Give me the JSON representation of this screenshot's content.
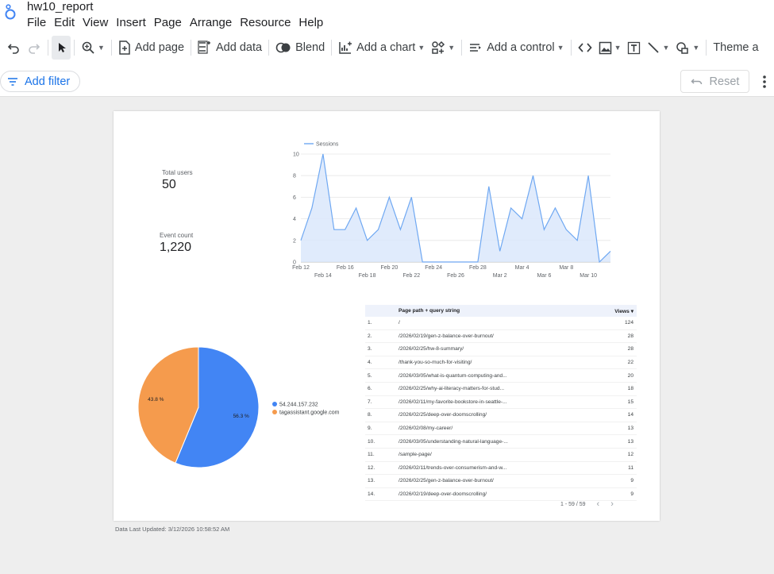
{
  "app": {
    "doc_title": "hw10_report"
  },
  "menu": [
    "File",
    "Edit",
    "View",
    "Insert",
    "Page",
    "Arrange",
    "Resource",
    "Help"
  ],
  "toolbar": {
    "add_page": "Add page",
    "add_data": "Add data",
    "blend": "Blend",
    "add_chart": "Add a chart",
    "add_control": "Add a control",
    "theme": "Theme a"
  },
  "filterbar": {
    "add_filter": "Add filter",
    "reset": "Reset"
  },
  "scorecards": [
    {
      "label": "Total users",
      "value": "50"
    },
    {
      "label": "Event count",
      "value": "1,220"
    }
  ],
  "chart_data": [
    {
      "type": "area",
      "series": [
        {
          "name": "Sessions",
          "values": [
            2,
            5,
            10,
            3,
            3,
            5,
            2,
            3,
            6,
            3,
            6,
            0,
            0,
            0,
            0,
            0,
            0,
            7,
            1,
            5,
            4,
            8,
            3,
            5,
            3,
            2,
            8,
            0,
            1
          ]
        }
      ],
      "x": [
        "Feb 12",
        "Feb 13",
        "Feb 14",
        "Feb 15",
        "Feb 16",
        "Feb 17",
        "Feb 18",
        "Feb 19",
        "Feb 20",
        "Feb 21",
        "Feb 22",
        "Feb 23",
        "Feb 24",
        "Feb 25",
        "Feb 26",
        "Feb 27",
        "Feb 28",
        "Mar 1",
        "Mar 2",
        "Mar 3",
        "Mar 4",
        "Mar 5",
        "Mar 6",
        "Mar 7",
        "Mar 8",
        "Mar 9",
        "Mar 10",
        "Mar 11",
        "Mar 12"
      ],
      "x_tick_labels_row1": [
        "Feb 12",
        "Feb 16",
        "Feb 20",
        "Feb 24",
        "Feb 28",
        "Mar 4",
        "Mar 8"
      ],
      "x_tick_labels_row2": [
        "Feb 14",
        "Feb 18",
        "Feb 22",
        "Feb 26",
        "Mar 2",
        "Mar 6",
        "Mar 10"
      ],
      "y_ticks": [
        "0",
        "2",
        "4",
        "6",
        "8",
        "10"
      ],
      "ylim": [
        0,
        10
      ],
      "legend": "top-left",
      "color": "#6fa8f2"
    },
    {
      "type": "pie",
      "slices": [
        {
          "label": "54.244.157.232",
          "value": 56.3,
          "display": "56.3 %",
          "color": "#4285f4"
        },
        {
          "label": "tagassistant.google.com",
          "value": 43.8,
          "display": "43.8 %",
          "color": "#f59b4d"
        }
      ],
      "legend": "right"
    },
    {
      "type": "table",
      "columns": [
        "Page path + query string",
        "Views"
      ],
      "rows": [
        {
          "idx": "1.",
          "path": "/",
          "views": "124"
        },
        {
          "idx": "2.",
          "path": "/2026/02/19/gen-z-balance-over-burnout/",
          "views": "28"
        },
        {
          "idx": "3.",
          "path": "/2026/02/25/hw-8-summary/",
          "views": "28"
        },
        {
          "idx": "4.",
          "path": "/thank-you-so-much-for-visiting/",
          "views": "22"
        },
        {
          "idx": "5.",
          "path": "/2026/03/05/what-is-quantum-computing-and...",
          "views": "20"
        },
        {
          "idx": "6.",
          "path": "/2026/02/25/why-ai-literacy-matters-for-stud...",
          "views": "18"
        },
        {
          "idx": "7.",
          "path": "/2026/02/11/my-favorite-bookstore-in-seattle-...",
          "views": "15"
        },
        {
          "idx": "8.",
          "path": "/2026/02/25/deep-over-doomscrolling/",
          "views": "14"
        },
        {
          "idx": "9.",
          "path": "/2026/02/08/my-career/",
          "views": "13"
        },
        {
          "idx": "10.",
          "path": "/2026/03/05/understanding-natural-language-...",
          "views": "13"
        },
        {
          "idx": "11.",
          "path": "/sample-page/",
          "views": "12"
        },
        {
          "idx": "12.",
          "path": "/2026/02/11/trends-over-consumerism-and-w...",
          "views": "11"
        },
        {
          "idx": "13.",
          "path": "/2026/02/25/gen-z-balance-over-burnout/",
          "views": "9"
        },
        {
          "idx": "14.",
          "path": "/2026/02/19/deep-over-doomscrolling/",
          "views": "9"
        }
      ],
      "pagination": "1 - 59 / 59"
    }
  ],
  "footer": {
    "last_updated": "Data Last Updated: 3/12/2026 10:58:52 AM"
  }
}
